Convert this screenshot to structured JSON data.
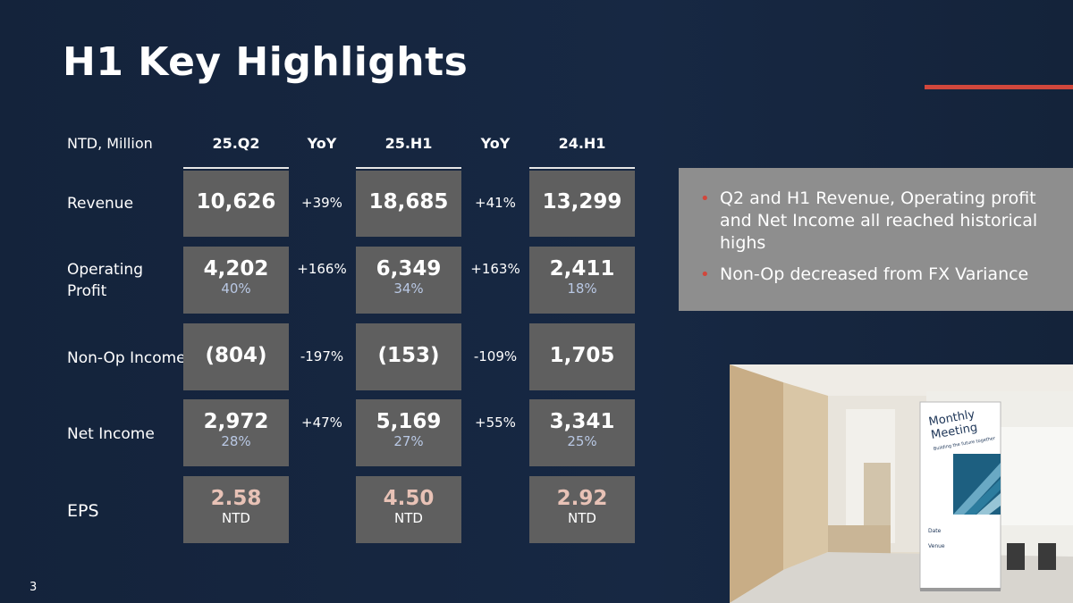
{
  "slide": {
    "title": "H1 Key Highlights",
    "page_number": "3"
  },
  "table": {
    "unit_label": "NTD, Million",
    "columns": {
      "c1": "25.Q2",
      "yoy1": "YoY",
      "c2": "25.H1",
      "yoy2": "YoY",
      "c3": "24.H1"
    },
    "rows": {
      "revenue": {
        "label": "Revenue",
        "q2": "10,626",
        "yoy1": "+39%",
        "h1": "18,685",
        "yoy2": "+41%",
        "h1_prev": "13,299"
      },
      "operating_profit": {
        "label_line1": "Operating",
        "label_line2": "Profit",
        "q2": "4,202",
        "q2_margin": "40%",
        "yoy1": "+166%",
        "h1": "6,349",
        "h1_margin": "34%",
        "yoy2": "+163%",
        "h1_prev": "2,411",
        "h1_prev_margin": "18%"
      },
      "non_op": {
        "label": "Non-Op Income",
        "q2": "(804)",
        "yoy1": "-197%",
        "h1": "(153)",
        "yoy2": "-109%",
        "h1_prev": "1,705"
      },
      "net_income": {
        "label": "Net Income",
        "q2": "2,972",
        "q2_margin": "28%",
        "yoy1": "+47%",
        "h1": "5,169",
        "h1_margin": "27%",
        "yoy2": "+55%",
        "h1_prev": "3,341",
        "h1_prev_margin": "25%"
      },
      "eps": {
        "label": "EPS",
        "q2": "2.58",
        "h1": "4.50",
        "h1_prev": "2.92",
        "unit": "NTD"
      }
    }
  },
  "notes": {
    "bullets": [
      "Q2 and H1 Revenue, Operating profit and Net Income all reached historical highs",
      "Non-Op decreased from FX Variance"
    ]
  },
  "photo": {
    "sign_title_line1": "Monthly",
    "sign_title_line2": "Meeting",
    "sign_subtitle": "Building the future together",
    "sign_date_label": "Date",
    "sign_venue_label": "Venue"
  },
  "colors": {
    "background": "#15243d",
    "accent": "#d1473c",
    "cell": "#5f5f5f",
    "note_panel": "#8e8e8e",
    "margin_text": "#b9c8e4",
    "eps_text": "#e8c2b6"
  }
}
